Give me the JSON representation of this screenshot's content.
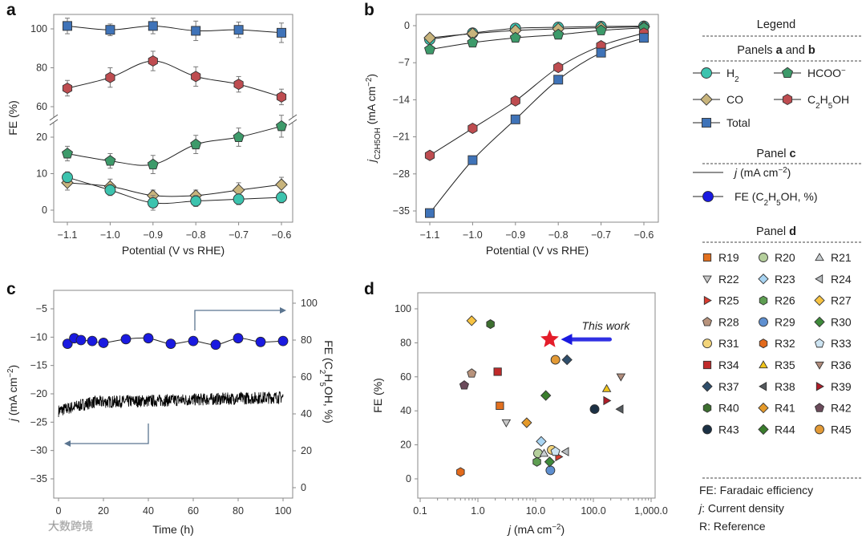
{
  "colors": {
    "H2": "#3cc3ae",
    "HCOO": "#3d9a6a",
    "CO": "#c8b47c",
    "C2H5OH": "#be4c50",
    "Total": "#3f73b8",
    "FE_c": "#1a1ae0",
    "annot": "#5b7590",
    "star": "#e41d2a",
    "thiswork": "#1a1ae0",
    "axis": "#888888"
  },
  "watermark": "大数跨境",
  "chart_data": [
    {
      "panel_label": "a",
      "type": "line",
      "xlabel": "Potential (V vs RHE)",
      "ylabel": "FE (%)",
      "x": [
        -1.1,
        -1.0,
        -0.9,
        -0.8,
        -0.7,
        -0.6
      ],
      "x_ticks": [
        "−1.1",
        "−1.0",
        "−0.9",
        "−0.8",
        "−0.7",
        "−0.6"
      ],
      "y_ticks_upper": [
        "60",
        "80",
        "100"
      ],
      "y_ticks_lower": [
        "0",
        "10",
        "20"
      ],
      "ylim_lower": [
        -3,
        27
      ],
      "ylim_upper": [
        57,
        105
      ],
      "broken_axis": true,
      "series": [
        {
          "name": "Total",
          "marker": "square",
          "values": [
            101.5,
            99.5,
            101.5,
            99,
            99.5,
            98
          ],
          "err": [
            4,
            3,
            4,
            5,
            4,
            5
          ]
        },
        {
          "name": "C2H5OH",
          "marker": "hexagon",
          "values": [
            69.5,
            75,
            83.5,
            75.5,
            71.5,
            65
          ],
          "err": [
            4,
            5,
            5,
            5,
            4,
            4
          ]
        },
        {
          "name": "HCOO",
          "marker": "pentagon",
          "values": [
            15.5,
            13.5,
            12.5,
            18,
            20,
            23
          ],
          "err": [
            2,
            2,
            2.5,
            2.5,
            2.5,
            3
          ]
        },
        {
          "name": "CO",
          "marker": "diamond",
          "values": [
            7.5,
            6.5,
            4,
            4,
            5.5,
            7
          ],
          "err": [
            2,
            2,
            1.5,
            1.5,
            2,
            2
          ]
        },
        {
          "name": "H2",
          "marker": "circle",
          "values": [
            9,
            5.5,
            2,
            2.5,
            3,
            3.5
          ],
          "err": [
            1.5,
            1.5,
            2,
            1.5,
            1.5,
            1.5
          ]
        }
      ]
    },
    {
      "panel_label": "b",
      "type": "line",
      "xlabel": "Potential (V vs RHE)",
      "ylabel_parts": [
        "j",
        "C2H5OH",
        " (mA cm",
        "−2",
        ")"
      ],
      "x": [
        -1.1,
        -1.0,
        -0.9,
        -0.8,
        -0.7,
        -0.6
      ],
      "x_ticks": [
        "−1.1",
        "−1.0",
        "−0.9",
        "−0.8",
        "−0.7",
        "−0.6"
      ],
      "y_ticks": [
        "0",
        "−7",
        "−14",
        "−21",
        "−28",
        "−35"
      ],
      "ylim": [
        -37,
        1
      ],
      "series": [
        {
          "name": "H2",
          "marker": "circle",
          "values": [
            -2.6,
            -1.4,
            -0.5,
            -0.3,
            -0.15,
            -0.1
          ]
        },
        {
          "name": "CO",
          "marker": "diamond",
          "values": [
            -2.3,
            -1.5,
            -0.9,
            -0.6,
            -0.4,
            -0.2
          ]
        },
        {
          "name": "HCOO",
          "marker": "pentagon",
          "values": [
            -4.5,
            -3.2,
            -2.3,
            -1.7,
            -0.9,
            -0.4
          ]
        },
        {
          "name": "C2H5OH",
          "marker": "hexagon",
          "values": [
            -24.5,
            -19.4,
            -14.2,
            -7.9,
            -3.8,
            -1.4
          ]
        },
        {
          "name": "Total",
          "marker": "square",
          "values": [
            -35.4,
            -25.4,
            -17.7,
            -10.2,
            -5.1,
            -2.3
          ]
        }
      ]
    },
    {
      "panel_label": "c",
      "type": "line",
      "xlabel": "Time (h)",
      "ylabel_left": "j (mA cm−2)",
      "ylabel_right_parts": [
        "FE (C",
        "2",
        "H",
        "5",
        "OH, %)"
      ],
      "x_ticks": [
        "0",
        "20",
        "40",
        "60",
        "80",
        "100"
      ],
      "y_ticks_left": [
        "−5",
        "−10",
        "−15",
        "−20",
        "−25",
        "−30",
        "−35"
      ],
      "y_ticks_right": [
        "0",
        "20",
        "40",
        "60",
        "80",
        "100"
      ],
      "ylim_left": [
        -37.5,
        -2.5
      ],
      "ylim_right": [
        -2.5,
        107
      ],
      "j_series": {
        "start": -23,
        "mid": -21.5,
        "end": -20.6,
        "noise": 1.1
      },
      "fe_series": {
        "x": [
          4,
          7,
          10,
          15,
          20,
          30,
          40,
          50,
          60,
          70,
          80,
          90,
          100
        ],
        "values": [
          78,
          81,
          80,
          79.5,
          78.5,
          80.5,
          81,
          78,
          79.5,
          77.5,
          81,
          79,
          79.5
        ]
      }
    },
    {
      "panel_label": "d",
      "type": "scatter",
      "xlabel_parts": [
        "j",
        " (mA cm",
        "−2",
        ")"
      ],
      "ylabel": "FE (%)",
      "x_scale": "log",
      "xlim": [
        0.1,
        1000
      ],
      "ylim": [
        -6,
        110
      ],
      "x_ticks": [
        "0.1",
        "1.0",
        "10.0",
        "100.0",
        "1,000.0"
      ],
      "y_ticks": [
        "0",
        "20",
        "40",
        "60",
        "80",
        "100"
      ],
      "this_work": {
        "label": "This work",
        "x": 17.5,
        "y": 82
      },
      "points": [
        {
          "ref": "R19",
          "x": 2.4,
          "y": 43,
          "m": "square",
          "c": "#e2701f"
        },
        {
          "ref": "R20",
          "x": 11,
          "y": 15,
          "m": "circle",
          "c": "#b5cf9c"
        },
        {
          "ref": "R21",
          "x": 14,
          "y": 15,
          "m": "triangle",
          "c": "#c8cdd0"
        },
        {
          "ref": "R22",
          "x": 3.1,
          "y": 33,
          "m": "triangle-down",
          "c": "#c8c8c8"
        },
        {
          "ref": "R23",
          "x": 12.5,
          "y": 22,
          "m": "diamond",
          "c": "#a8d4f2"
        },
        {
          "ref": "R24",
          "x": 33,
          "y": 16,
          "m": "triangle-left",
          "c": "#b8bcbf"
        },
        {
          "ref": "R25",
          "x": 25,
          "y": 13,
          "m": "triangle-right",
          "c": "#d83b2f"
        },
        {
          "ref": "R26",
          "x": 10.5,
          "y": 10,
          "m": "hexagon",
          "c": "#5e9e52"
        },
        {
          "ref": "R27",
          "x": 0.78,
          "y": 93,
          "m": "diamond",
          "c": "#f7c342"
        },
        {
          "ref": "R28",
          "x": 0.78,
          "y": 62,
          "m": "pentagon",
          "c": "#b8937c"
        },
        {
          "ref": "R29",
          "x": 18,
          "y": 5,
          "m": "circle",
          "c": "#5e8fd0"
        },
        {
          "ref": "R30",
          "x": 17.5,
          "y": 10,
          "m": "diamond",
          "c": "#3e8a3a"
        },
        {
          "ref": "R31",
          "x": 19,
          "y": 17,
          "m": "circle",
          "c": "#f2d47a"
        },
        {
          "ref": "R32",
          "x": 0.5,
          "y": 4,
          "m": "hexagon",
          "c": "#e26a1c"
        },
        {
          "ref": "R33",
          "x": 22,
          "y": 16,
          "m": "pentagon",
          "c": "#cde4f2"
        },
        {
          "ref": "R34",
          "x": 2.2,
          "y": 63,
          "m": "square",
          "c": "#c02a2a"
        },
        {
          "ref": "R35",
          "x": 170,
          "y": 53,
          "m": "triangle",
          "c": "#f0c41a"
        },
        {
          "ref": "R36",
          "x": 300,
          "y": 60,
          "m": "triangle-down",
          "c": "#b08c7c"
        },
        {
          "ref": "R37",
          "x": 35,
          "y": 70,
          "m": "diamond",
          "c": "#2f4e6b"
        },
        {
          "ref": "R38",
          "x": 290,
          "y": 41,
          "m": "triangle-left",
          "c": "#555a5e"
        },
        {
          "ref": "R39",
          "x": 170,
          "y": 46,
          "m": "triangle-right",
          "c": "#b01c28"
        },
        {
          "ref": "R40",
          "x": 1.65,
          "y": 91,
          "m": "hexagon",
          "c": "#3d6f30"
        },
        {
          "ref": "R41",
          "x": 7,
          "y": 33,
          "m": "diamond",
          "c": "#e59a2a"
        },
        {
          "ref": "R42",
          "x": 0.58,
          "y": 55,
          "m": "pentagon",
          "c": "#6b4b5b"
        },
        {
          "ref": "R43",
          "x": 105,
          "y": 41,
          "m": "circle",
          "c": "#1b3044"
        },
        {
          "ref": "R44",
          "x": 15,
          "y": 49,
          "m": "diamond",
          "c": "#3a7d2c"
        },
        {
          "ref": "R45",
          "x": 22,
          "y": 70,
          "m": "circle",
          "c": "#e39a36"
        }
      ]
    }
  ],
  "legend": {
    "title": "Legend",
    "panels_ab_title": [
      "Panels ",
      "a",
      " and ",
      "b"
    ],
    "ab_items": {
      "H2": [
        "H",
        "2"
      ],
      "HCOO": [
        "HCOO",
        "−"
      ],
      "CO": [
        "CO"
      ],
      "C2H5OH": [
        "C",
        "2",
        "H",
        "5",
        "OH"
      ],
      "Total": [
        "Total"
      ]
    },
    "panel_c_title": [
      "Panel ",
      "c"
    ],
    "c_line_label": [
      "j",
      " (mA cm",
      "−2",
      ")"
    ],
    "c_fe_label": [
      "FE (C",
      "2",
      "H",
      "5",
      "OH, %)"
    ],
    "panel_d_title": [
      "Panel ",
      "d"
    ],
    "footnotes": [
      {
        "key": "FE",
        "text": ": Faradaic efficiency"
      },
      {
        "key": "j",
        "text": ": Current density"
      },
      {
        "key": "R",
        "text": ": Reference"
      }
    ]
  }
}
